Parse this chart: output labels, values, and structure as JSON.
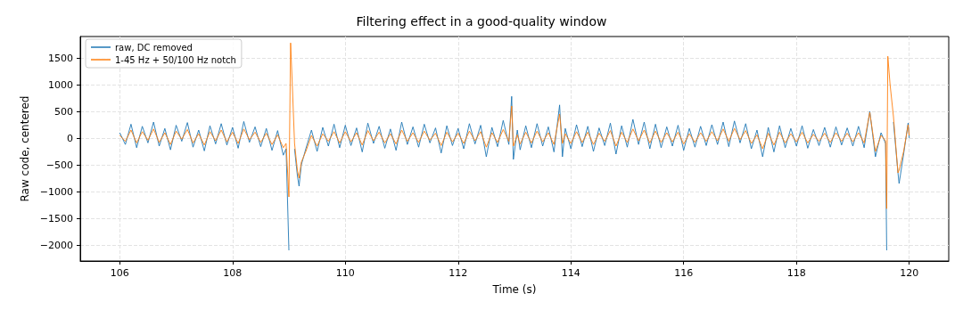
{
  "chart_data": {
    "type": "line",
    "title": "Filtering effect in a good-quality window",
    "xlabel": "Time (s)",
    "ylabel": "Raw code, centered",
    "x": [
      106,
      106.1,
      106.2,
      106.3,
      106.4,
      106.5,
      106.6,
      106.7,
      106.8,
      106.9,
      107,
      107.1,
      107.2,
      107.3,
      107.4,
      107.5,
      107.6,
      107.7,
      107.8,
      107.9,
      108,
      108.1,
      108.2,
      108.3,
      108.4,
      108.5,
      108.6,
      108.7,
      108.8,
      108.9,
      108.95,
      109,
      109.03,
      109.06,
      109.1,
      109.15,
      109.18,
      109.22,
      109.3,
      109.4,
      109.5,
      109.6,
      109.7,
      109.8,
      109.9,
      110,
      110.1,
      110.2,
      110.3,
      110.4,
      110.5,
      110.6,
      110.7,
      110.8,
      110.9,
      111,
      111.1,
      111.2,
      111.3,
      111.4,
      111.5,
      111.6,
      111.7,
      111.8,
      111.9,
      112,
      112.1,
      112.2,
      112.3,
      112.4,
      112.5,
      112.6,
      112.7,
      112.8,
      112.9,
      112.95,
      112.98,
      113.05,
      113.1,
      113.2,
      113.3,
      113.4,
      113.5,
      113.6,
      113.7,
      113.8,
      113.85,
      113.9,
      114,
      114.1,
      114.2,
      114.3,
      114.4,
      114.5,
      114.6,
      114.7,
      114.8,
      114.9,
      115,
      115.1,
      115.2,
      115.3,
      115.4,
      115.5,
      115.6,
      115.7,
      115.8,
      115.9,
      116,
      116.1,
      116.2,
      116.3,
      116.4,
      116.5,
      116.6,
      116.7,
      116.8,
      116.9,
      117,
      117.1,
      117.2,
      117.3,
      117.4,
      117.5,
      117.6,
      117.7,
      117.8,
      117.9,
      118,
      118.1,
      118.2,
      118.3,
      118.4,
      118.5,
      118.6,
      118.7,
      118.8,
      118.9,
      119,
      119.1,
      119.2,
      119.3,
      119.4,
      119.5,
      119.58,
      119.6,
      119.62,
      119.66,
      119.72,
      119.8,
      119.82,
      119.9,
      119.98,
      120
    ],
    "series": [
      {
        "name": "raw, DC removed",
        "color": "#1f77b4",
        "values": [
          100,
          -120,
          260,
          -180,
          220,
          -90,
          300,
          -150,
          180,
          -220,
          240,
          -60,
          290,
          -170,
          150,
          -240,
          230,
          -110,
          270,
          -130,
          200,
          -190,
          310,
          -80,
          210,
          -160,
          180,
          -230,
          140,
          -320,
          -200,
          -2100,
          null,
          null,
          -200,
          -700,
          -900,
          -500,
          -200,
          150,
          -250,
          200,
          -150,
          260,
          -180,
          240,
          -140,
          190,
          -260,
          280,
          -100,
          220,
          -190,
          170,
          -230,
          300,
          -120,
          210,
          -170,
          260,
          -90,
          190,
          -280,
          230,
          -140,
          180,
          -200,
          270,
          -110,
          240,
          -350,
          200,
          -160,
          330,
          -120,
          780,
          -400,
          150,
          -220,
          230,
          -180,
          270,
          -150,
          210,
          -260,
          620,
          -350,
          180,
          -200,
          250,
          -160,
          220,
          -250,
          190,
          -140,
          280,
          -300,
          230,
          -170,
          350,
          -120,
          300,
          -200,
          260,
          -180,
          210,
          -150,
          240,
          -230,
          180,
          -170,
          220,
          -140,
          250,
          -120,
          300,
          -160,
          320,
          -90,
          270,
          -200,
          150,
          -350,
          200,
          -260,
          230,
          -180,
          180,
          -150,
          230,
          -190,
          160,
          -140,
          200,
          -170,
          210,
          -130,
          190,
          -150,
          220,
          -180,
          500,
          -350,
          100,
          -100,
          -2100,
          null,
          null,
          300,
          -650,
          -850,
          -300,
          280,
          0
        ]
      },
      {
        "name": "1-45 Hz + 50/100 Hz notch",
        "color": "#ff7f0e",
        "values": [
          50,
          -60,
          150,
          -90,
          120,
          -40,
          170,
          -80,
          100,
          -120,
          130,
          -20,
          160,
          -90,
          80,
          -130,
          120,
          -50,
          150,
          -70,
          110,
          -100,
          170,
          -30,
          110,
          -80,
          90,
          -120,
          60,
          -180,
          -100,
          -1100,
          1780,
          1000,
          -100,
          -600,
          -750,
          -450,
          -250,
          50,
          -150,
          80,
          -60,
          120,
          -90,
          120,
          -70,
          100,
          -130,
          140,
          -50,
          110,
          -90,
          80,
          -110,
          150,
          -60,
          100,
          -80,
          130,
          -40,
          90,
          -140,
          110,
          -70,
          90,
          -100,
          130,
          -50,
          120,
          -170,
          100,
          -80,
          160,
          -60,
          600,
          -150,
          60,
          -110,
          110,
          -90,
          130,
          -70,
          100,
          -120,
          450,
          -100,
          80,
          -100,
          120,
          -80,
          110,
          -120,
          90,
          -60,
          140,
          -150,
          110,
          -80,
          170,
          -50,
          150,
          -90,
          130,
          -80,
          100,
          -70,
          110,
          -110,
          80,
          -80,
          100,
          -60,
          120,
          -50,
          170,
          -60,
          180,
          -30,
          140,
          -100,
          60,
          -200,
          90,
          -130,
          110,
          -90,
          80,
          -70,
          110,
          -90,
          70,
          -60,
          90,
          -80,
          100,
          -60,
          90,
          -70,
          100,
          -90,
          480,
          -250,
          50,
          -50,
          -1320,
          1530,
          1000,
          400,
          -650,
          -600,
          -250,
          250,
          50
        ]
      }
    ],
    "xlim": [
      105.3,
      120.7
    ],
    "xticks": [
      106,
      108,
      110,
      112,
      114,
      116,
      118,
      120
    ],
    "ylim": [
      -2300,
      1900
    ],
    "yticks": [
      -2000,
      -1500,
      -1000,
      -500,
      0,
      500,
      1000,
      1500
    ],
    "grid": true,
    "legend": "top left",
    "marker": "none",
    "line_style": "solid"
  }
}
